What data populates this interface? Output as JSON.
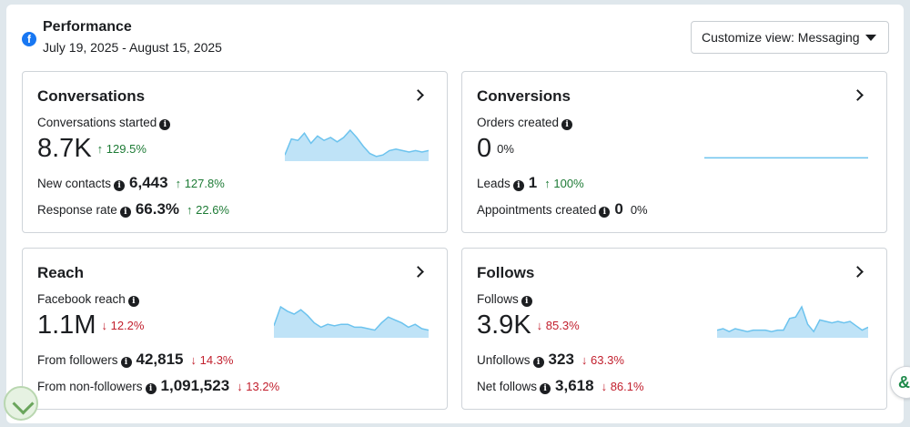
{
  "header": {
    "title": "Performance",
    "date_range": "July 19, 2025 - August 15, 2025",
    "customize_label": "Customize view: Messaging"
  },
  "cards": {
    "conversations": {
      "title": "Conversations",
      "metric_label": "Conversations started",
      "value": "8.7K",
      "change": "↑ 129.5%",
      "rows": [
        {
          "label": "New contacts",
          "value": "6,443",
          "change": "↑ 127.8%"
        },
        {
          "label": "Response rate",
          "value": "66.3%",
          "change": "↑ 22.6%"
        }
      ]
    },
    "conversions": {
      "title": "Conversions",
      "metric_label": "Orders created",
      "value": "0",
      "change": "0%",
      "rows": [
        {
          "label": "Leads",
          "value": "1",
          "change": "↑ 100%"
        },
        {
          "label": "Appointments created",
          "value": "0",
          "change": "0%"
        }
      ]
    },
    "reach": {
      "title": "Reach",
      "metric_label": "Facebook reach",
      "value": "1.1M",
      "change": "↓ 12.2%",
      "rows": [
        {
          "label": "From followers",
          "value": "42,815",
          "change": "↓ 14.3%"
        },
        {
          "label": "From non-followers",
          "value": "1,091,523",
          "change": "↓ 13.2%"
        }
      ]
    },
    "follows": {
      "title": "Follows",
      "metric_label": "Follows",
      "value": "3.9K",
      "change": "↓ 85.3%",
      "rows": [
        {
          "label": "Unfollows",
          "value": "323",
          "change": "↓ 63.3%"
        },
        {
          "label": "Net follows",
          "value": "3,618",
          "change": "↓ 86.1%"
        }
      ]
    }
  },
  "colors": {
    "sparkline_fill": "#bfe3f7",
    "sparkline_line": "#6cc3ee",
    "positive": "#1e7b36",
    "negative": "#c2202e",
    "facebook_blue": "#1877f2"
  },
  "sparklines": {
    "conversations": [
      0.15,
      0.7,
      0.65,
      0.9,
      0.55,
      0.8,
      0.65,
      0.75,
      0.6,
      0.75,
      1.0,
      0.75,
      0.45,
      0.2,
      0.1,
      0.15,
      0.3,
      0.35,
      0.3,
      0.25,
      0.3,
      0.25,
      0.3
    ],
    "conversions": [
      0.05,
      0.05,
      0.05,
      0.05,
      0.05,
      0.05
    ],
    "reach": [
      0.35,
      1.0,
      0.85,
      0.75,
      0.9,
      0.7,
      0.45,
      0.3,
      0.4,
      0.35,
      0.4,
      0.4,
      0.3,
      0.3,
      0.25,
      0.2,
      0.45,
      0.65,
      0.55,
      0.45,
      0.3,
      0.4,
      0.25,
      0.2
    ],
    "follows": [
      0.2,
      0.25,
      0.15,
      0.25,
      0.2,
      0.15,
      0.2,
      0.2,
      0.2,
      0.15,
      0.2,
      0.2,
      0.6,
      0.65,
      1.0,
      0.4,
      0.15,
      0.55,
      0.5,
      0.45,
      0.5,
      0.45,
      0.5,
      0.35,
      0.2,
      0.3
    ]
  }
}
